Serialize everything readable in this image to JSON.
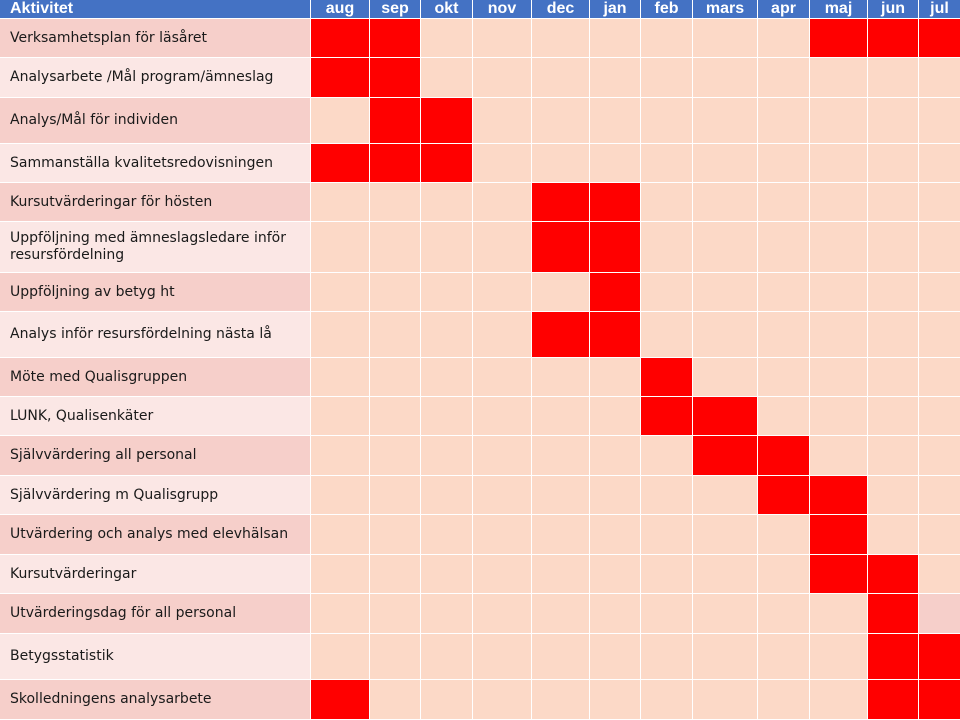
{
  "header": {
    "activity_label": "Aktivitet",
    "months": [
      "aug",
      "sep",
      "okt",
      "nov",
      "dec",
      "jan",
      "feb",
      "mars",
      "apr",
      "maj",
      "jun",
      "jul"
    ]
  },
  "colors": {
    "header_bg": "#4472c4",
    "header_text": "#ffffff",
    "label_dark": "#f6cfca",
    "label_light": "#fbe7e5",
    "cell_empty": "#fcd9c7",
    "cell_active": "#ff0000",
    "cell_alt": "#f6cfca"
  },
  "rows": [
    {
      "label": "Verksamhetsplan för läsåret",
      "active": [
        0,
        1,
        9,
        10,
        11
      ]
    },
    {
      "label": "Analysarbete /Mål program/ämneslag",
      "active": [
        0,
        1
      ]
    },
    {
      "label": "Analys/Mål för individen",
      "active": [
        1,
        2
      ]
    },
    {
      "label": "Sammanställa kvalitetsredovisningen",
      "active": [
        0,
        1,
        2
      ]
    },
    {
      "label": "Kursutvärderingar för hösten",
      "active": [
        4,
        5
      ]
    },
    {
      "label": "Uppföljning med ämneslagsledare inför resursfördelning",
      "active": [
        4,
        5
      ]
    },
    {
      "label": "Uppföljning  av betyg ht",
      "active": [
        5
      ]
    },
    {
      "label": "Analys inför resursfördelning nästa lå",
      "active": [
        4,
        5
      ]
    },
    {
      "label": "Möte med Qualisgruppen",
      "active": [
        6
      ]
    },
    {
      "label": "LUNK, Qualisenkäter",
      "active": [
        6,
        7
      ]
    },
    {
      "label": "Självvärdering  all personal",
      "active": [
        7,
        8
      ]
    },
    {
      "label": "Självvärdering m Qualisgrupp",
      "active": [
        8,
        9
      ]
    },
    {
      "label": "Utvärdering och analys med elevhälsan",
      "active": [
        9
      ]
    },
    {
      "label": "Kursutvärderingar",
      "active": [
        9,
        10
      ]
    },
    {
      "label": "Utvärderingsdag för all personal",
      "active": [
        10
      ],
      "alt": [
        11
      ]
    },
    {
      "label": "Betygsstatistik",
      "active": [
        10,
        11
      ]
    },
    {
      "label": "Skolledningens analysarbete",
      "active": [
        0,
        10,
        11
      ]
    }
  ]
}
